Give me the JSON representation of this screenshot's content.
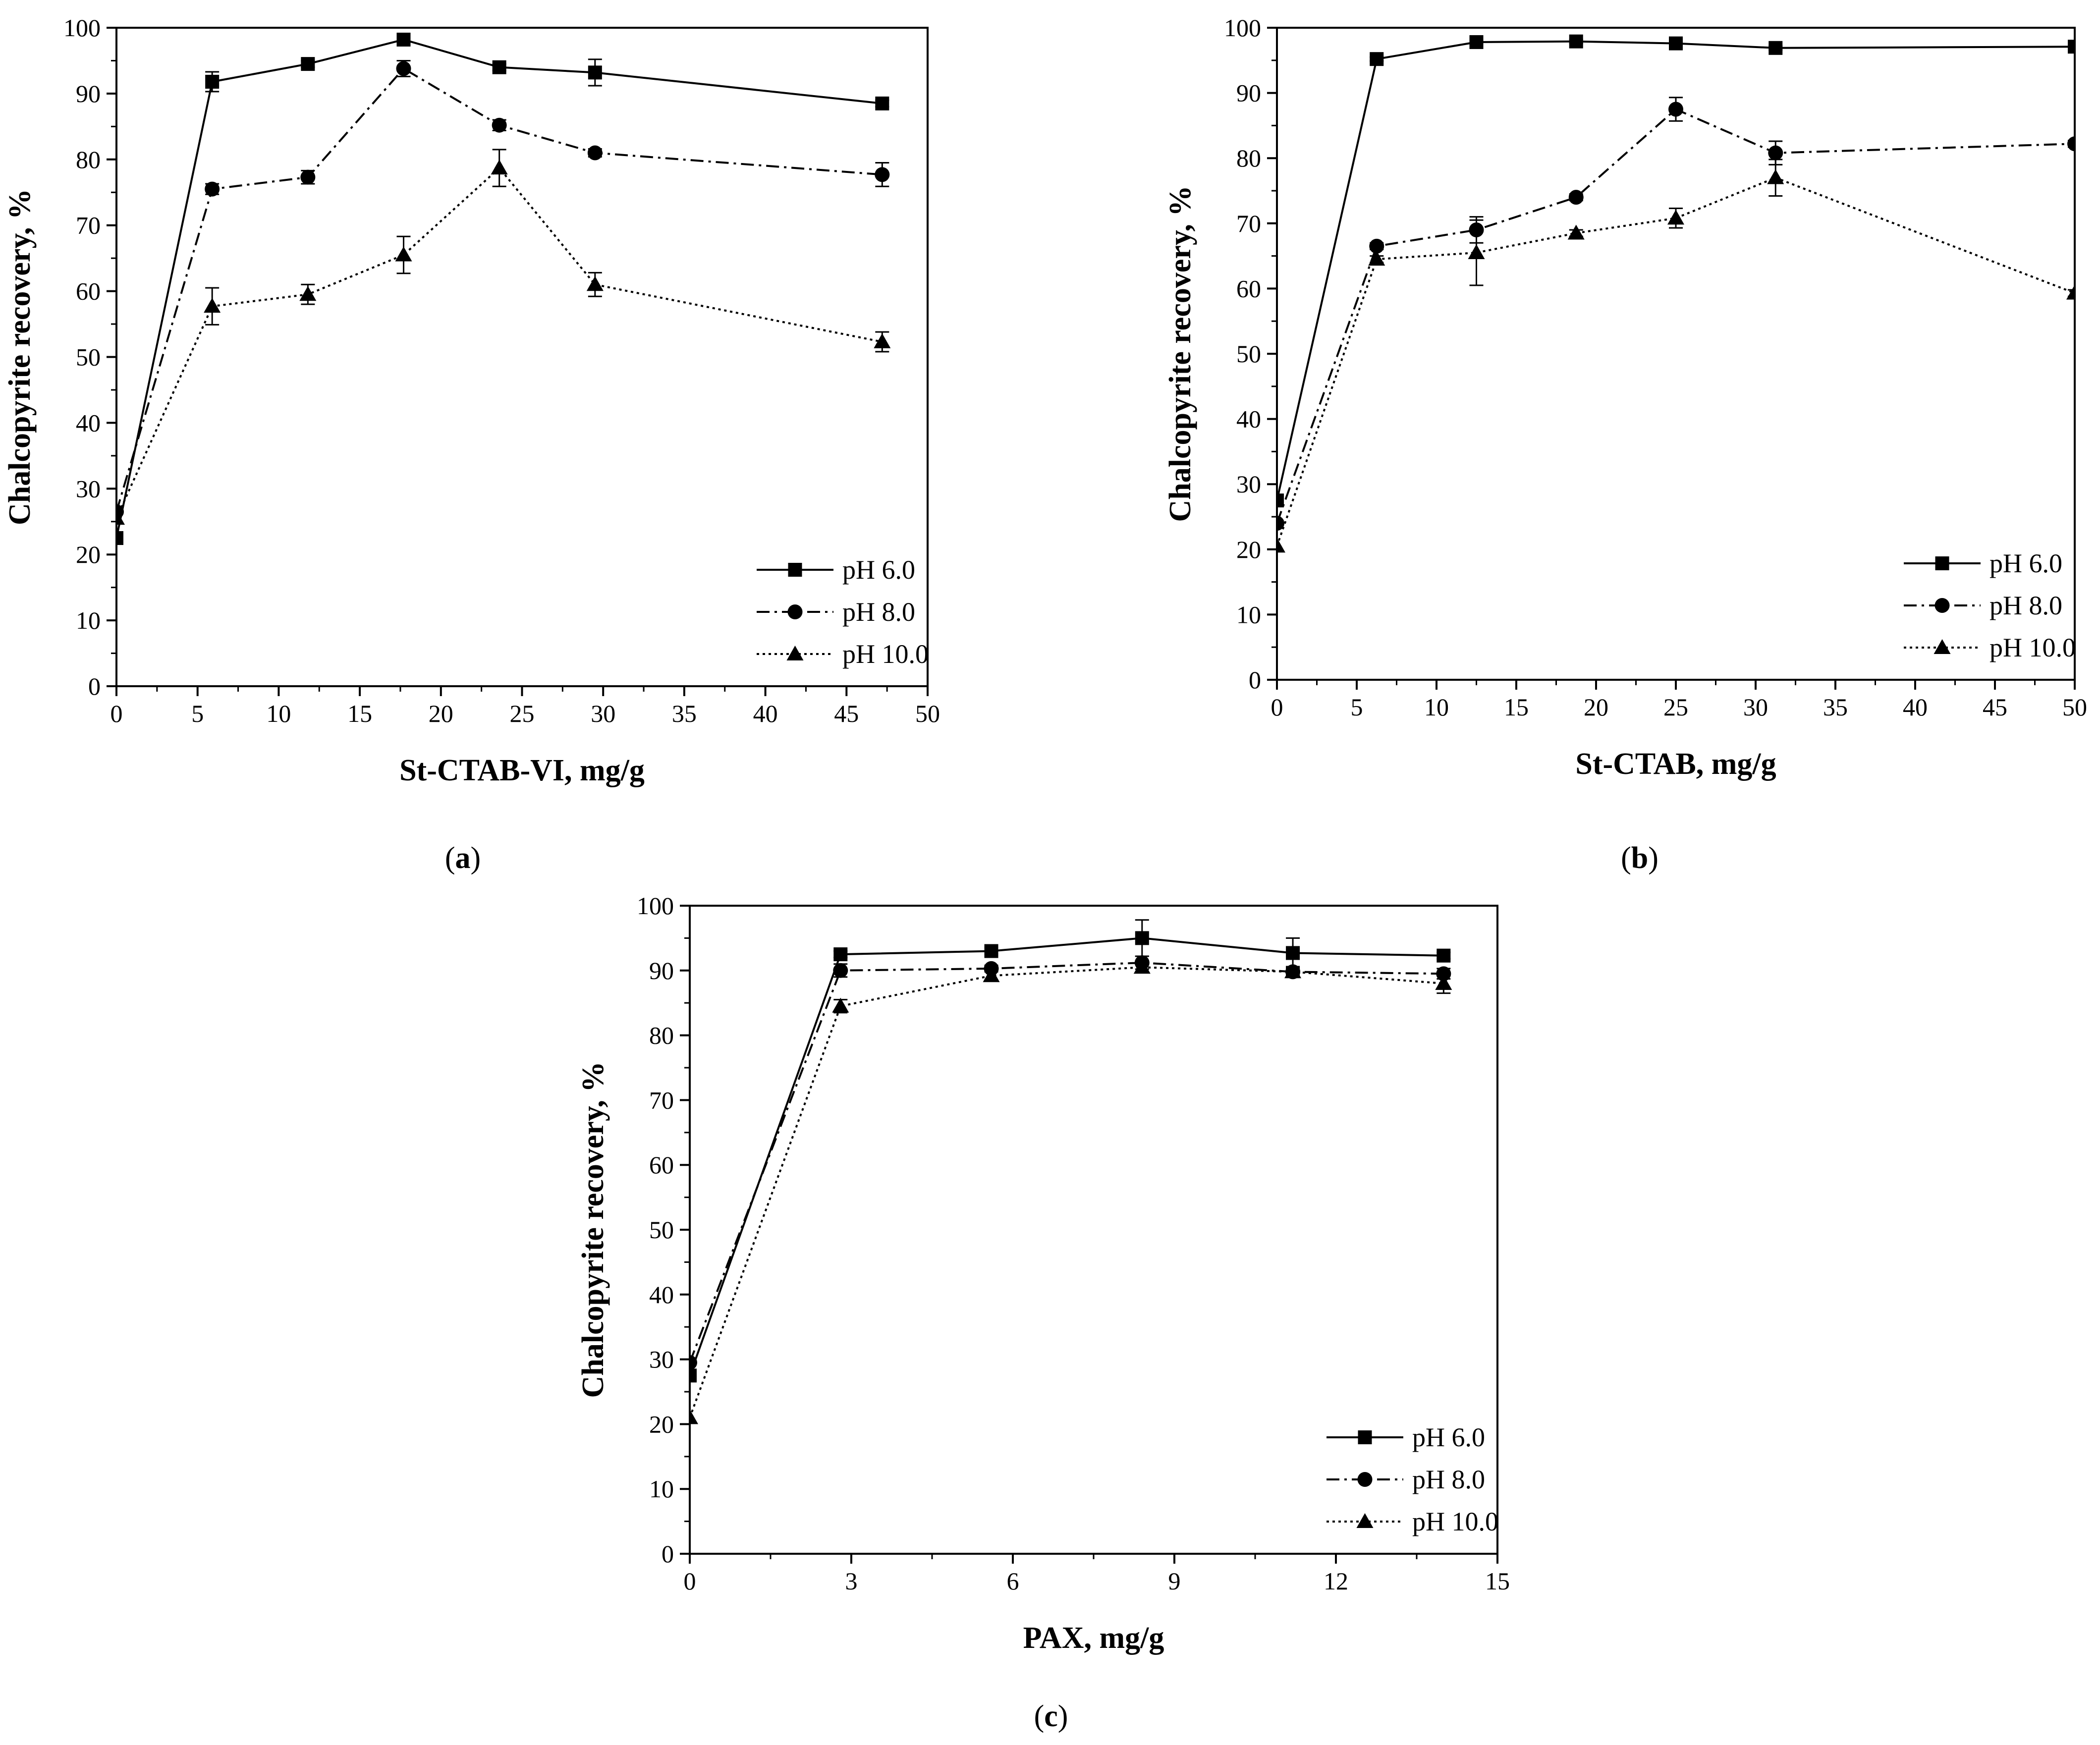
{
  "chart_data": [
    {
      "type": "line",
      "panel": "(a)",
      "caption_letter": "a",
      "xlabel": "St-CTAB-VI, mg/g",
      "ylabel": "Chalcopyrite recovery, %",
      "xlim": [
        0,
        50
      ],
      "ylim": [
        0,
        100
      ],
      "xticks": [
        "0",
        "5",
        "10",
        "15",
        "20",
        "25",
        "30",
        "35",
        "40",
        "45",
        "50"
      ],
      "yticks": [
        "0",
        "10",
        "20",
        "30",
        "40",
        "50",
        "60",
        "70",
        "80",
        "90",
        "100"
      ],
      "legend_position": "bottom-right",
      "series": [
        {
          "name": "pH 6.0",
          "marker": "square",
          "line": "solid",
          "x": [
            0,
            5.9,
            11.8,
            17.7,
            23.6,
            29.5,
            47.2
          ],
          "y": [
            22.5,
            91.8,
            94.5,
            98.2,
            94.0,
            93.2,
            88.5
          ],
          "err": [
            0,
            1.5,
            0.5,
            0.5,
            0.5,
            2.0,
            0.5
          ]
        },
        {
          "name": "pH 8.0",
          "marker": "circle",
          "line": "dashdot",
          "x": [
            0,
            5.9,
            11.8,
            17.7,
            23.6,
            29.5,
            47.2
          ],
          "y": [
            26.5,
            75.5,
            77.3,
            93.8,
            85.2,
            81.0,
            77.7
          ],
          "err": [
            0,
            0.8,
            1.0,
            1.2,
            0.8,
            0.6,
            1.8
          ]
        },
        {
          "name": "pH 10.0",
          "marker": "triangle",
          "line": "dotted",
          "x": [
            0,
            5.9,
            11.8,
            17.7,
            23.6,
            29.5,
            47.2
          ],
          "y": [
            25.5,
            57.7,
            59.5,
            65.5,
            78.7,
            61.0,
            52.3
          ],
          "err": [
            0,
            2.8,
            1.5,
            2.8,
            2.8,
            1.8,
            1.5
          ]
        }
      ]
    },
    {
      "type": "line",
      "panel": "(b)",
      "caption_letter": "b",
      "xlabel": "St-CTAB, mg/g",
      "ylabel": "Chalcopyrite recovery, %",
      "xlim": [
        0,
        50
      ],
      "ylim": [
        0,
        100
      ],
      "xticks": [
        "0",
        "5",
        "10",
        "15",
        "20",
        "25",
        "30",
        "35",
        "40",
        "45",
        "50"
      ],
      "yticks": [
        "0",
        "10",
        "20",
        "30",
        "40",
        "50",
        "60",
        "70",
        "80",
        "90",
        "100"
      ],
      "legend_position": "bottom-right",
      "series": [
        {
          "name": "pH 6.0",
          "marker": "square",
          "line": "solid",
          "x": [
            0,
            6.25,
            12.5,
            18.75,
            25,
            31.25,
            50
          ],
          "y": [
            27.5,
            95.2,
            97.8,
            97.9,
            97.6,
            96.9,
            97.1
          ],
          "err": [
            0,
            0.3,
            0.3,
            0.3,
            0.3,
            0.3,
            0.3
          ]
        },
        {
          "name": "pH 8.0",
          "marker": "circle",
          "line": "dashdot",
          "x": [
            0,
            6.25,
            12.5,
            18.75,
            25,
            31.25,
            50
          ],
          "y": [
            24.0,
            66.5,
            69.0,
            74.0,
            87.5,
            80.8,
            82.2
          ],
          "err": [
            0,
            0.5,
            2.0,
            0.5,
            1.8,
            1.8,
            0.5
          ]
        },
        {
          "name": "pH 10.0",
          "marker": "triangle",
          "line": "dotted",
          "x": [
            0,
            6.25,
            12.5,
            18.75,
            25,
            31.25,
            50
          ],
          "y": [
            20.5,
            64.5,
            65.5,
            68.5,
            70.8,
            77.0,
            59.3
          ],
          "err": [
            0,
            0.5,
            5.0,
            0.5,
            1.5,
            2.8,
            0.5
          ]
        }
      ]
    },
    {
      "type": "line",
      "panel": "(c)",
      "caption_letter": "c",
      "xlabel": "PAX, mg/g",
      "ylabel": "Chalcopyrite recovery, %",
      "xlim": [
        0,
        15
      ],
      "ylim": [
        0,
        100
      ],
      "xticks": [
        "0",
        "3",
        "6",
        "9",
        "12",
        "15"
      ],
      "yticks": [
        "0",
        "10",
        "20",
        "30",
        "40",
        "50",
        "60",
        "70",
        "80",
        "90",
        "100"
      ],
      "legend_position": "bottom-right",
      "series": [
        {
          "name": "pH 6.0",
          "marker": "square",
          "line": "solid",
          "x": [
            0,
            2.8,
            5.6,
            8.4,
            11.2,
            14.0
          ],
          "y": [
            27.5,
            92.5,
            93.0,
            95.0,
            92.7,
            92.3
          ],
          "err": [
            0,
            0.5,
            0.5,
            2.8,
            2.3,
            0.5
          ]
        },
        {
          "name": "pH 8.0",
          "marker": "circle",
          "line": "dashdot",
          "x": [
            0,
            2.8,
            5.6,
            8.4,
            11.2,
            14.0
          ],
          "y": [
            29.5,
            90.0,
            90.3,
            91.2,
            89.8,
            89.5
          ],
          "err": [
            0,
            1.0,
            0.5,
            1.0,
            0.8,
            0.8
          ]
        },
        {
          "name": "pH 10.0",
          "marker": "triangle",
          "line": "dotted",
          "x": [
            0,
            2.8,
            5.6,
            8.4,
            11.2,
            14.0
          ],
          "y": [
            21.0,
            84.5,
            89.2,
            90.5,
            89.8,
            88.0
          ],
          "err": [
            0,
            1.0,
            0.8,
            0.8,
            0.5,
            1.5
          ]
        }
      ]
    }
  ]
}
